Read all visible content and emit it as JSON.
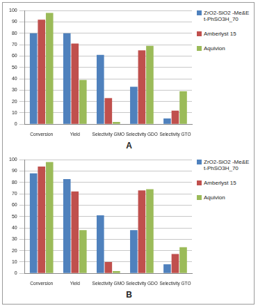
{
  "chart_data": [
    {
      "type": "bar",
      "title": "A",
      "categories": [
        "Conversion",
        "Yield",
        "Selectivity GMO",
        "Selectivity GDO",
        "Selectivity GTO"
      ],
      "series": [
        {
          "name": "ZrO2-SiO2 -Me&Et-PhSO3H_70",
          "color": "#4f81bd",
          "values": [
            80,
            80,
            61,
            33,
            5
          ]
        },
        {
          "name": "Amberlyst 15",
          "color": "#c0504d",
          "values": [
            92,
            71,
            23,
            65,
            12
          ]
        },
        {
          "name": "Aquivion",
          "color": "#9bbb59",
          "values": [
            98,
            39,
            2,
            69,
            29
          ]
        }
      ],
      "ylim": [
        0,
        100
      ],
      "yticks": [
        0,
        10,
        20,
        30,
        40,
        50,
        60,
        70,
        80,
        90,
        100
      ],
      "grid": true,
      "legend": "right"
    },
    {
      "type": "bar",
      "title": "B",
      "categories": [
        "Conversion",
        "Yield",
        "Selectivity GMO",
        "Selectivity GDO",
        "Selectivity GTO"
      ],
      "series": [
        {
          "name": "ZrO2-SiO2 -Me&Et-PhSO3H_70",
          "color": "#4f81bd",
          "values": [
            88,
            83,
            51,
            38,
            8
          ]
        },
        {
          "name": "Amberlyst 15",
          "color": "#c0504d",
          "values": [
            94,
            72,
            10,
            73,
            17
          ]
        },
        {
          "name": "Aquivion",
          "color": "#9bbb59",
          "values": [
            98,
            38,
            2,
            74,
            23
          ]
        }
      ],
      "ylim": [
        0,
        100
      ],
      "yticks": [
        0,
        10,
        20,
        30,
        40,
        50,
        60,
        70,
        80,
        90,
        100
      ],
      "grid": true,
      "legend": "right"
    }
  ]
}
